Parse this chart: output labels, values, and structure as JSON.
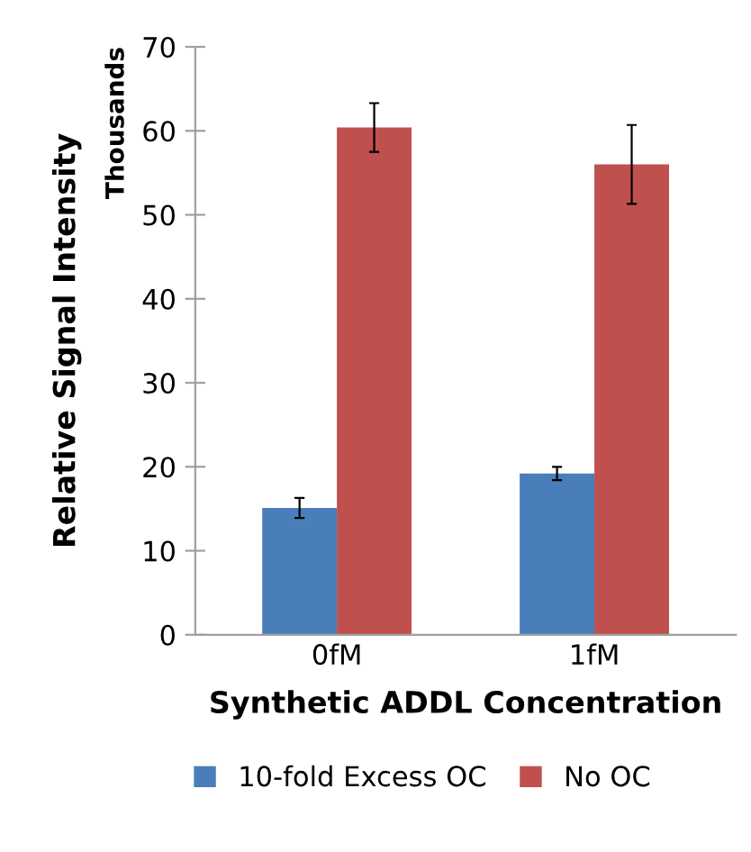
{
  "chart_data": {
    "type": "bar",
    "xlabel": "Synthetic ADDL Concentration",
    "ylabel": "Relative Signal Intensity",
    "annotations": [
      "Thousands"
    ],
    "categories": [
      "0fM",
      "1fM"
    ],
    "series": [
      {
        "name": "10-fold Excess OC",
        "color": "#4a7ebb",
        "values": [
          15.1,
          19.2
        ],
        "errors": [
          1.2,
          0.8
        ]
      },
      {
        "name": "No OC",
        "color": "#c0504d",
        "values": [
          60.4,
          56.0
        ],
        "errors": [
          2.9,
          4.7
        ]
      }
    ],
    "ylim": [
      0,
      70
    ],
    "yticks": [
      0,
      10,
      20,
      30,
      40,
      50,
      60,
      70
    ],
    "grid": false,
    "legend": "bottom"
  }
}
